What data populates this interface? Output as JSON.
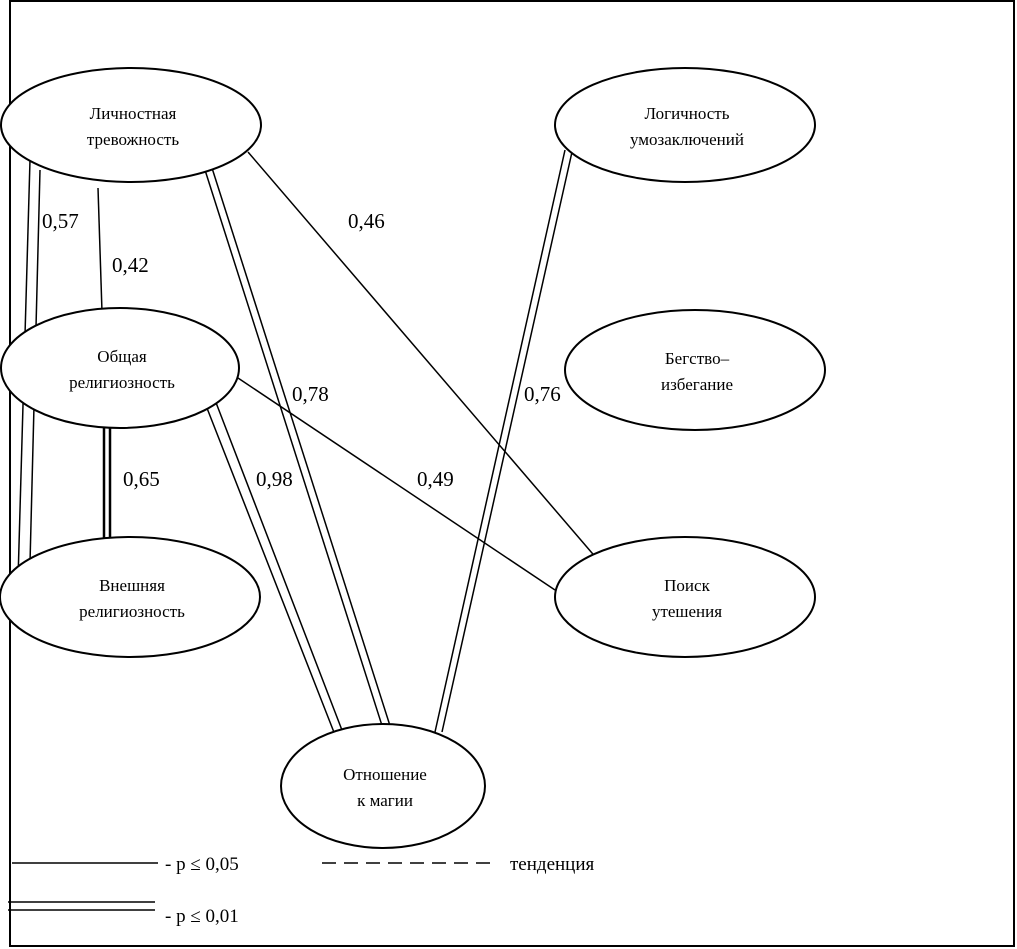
{
  "nodes": {
    "anxiety": {
      "lines": [
        "Личностная",
        "тревожность"
      ]
    },
    "logic": {
      "lines": [
        "Логичность",
        "умозаключений"
      ]
    },
    "religiosity": {
      "lines": [
        "Общая",
        "религиозность"
      ]
    },
    "escape": {
      "lines": [
        "Бегство–",
        "избегание"
      ]
    },
    "external": {
      "lines": [
        "Внешняя",
        "религиозность"
      ]
    },
    "comfort": {
      "lines": [
        "Поиск",
        "утешения"
      ]
    },
    "magic": {
      "lines": [
        "Отношение",
        "к магии"
      ]
    }
  },
  "edges": [
    {
      "from": "anxiety",
      "to": "external",
      "label": "0,57",
      "significance": "p ≤ 0,01"
    },
    {
      "from": "anxiety",
      "to": "religiosity",
      "label": "0,42",
      "significance": "p ≤ 0,05"
    },
    {
      "from": "religiosity",
      "to": "external",
      "label": "0,65",
      "significance": "p ≤ 0,01"
    },
    {
      "from": "anxiety",
      "to": "magic",
      "label": "0,78",
      "significance": "p ≤ 0,01"
    },
    {
      "from": "religiosity",
      "to": "magic",
      "label": "0,98",
      "significance": "p ≤ 0,01"
    },
    {
      "from": "anxiety",
      "to": "comfort",
      "label": "0,46",
      "significance": "p ≤ 0,05"
    },
    {
      "from": "religiosity",
      "to": "comfort",
      "label": "0,49",
      "significance": "p ≤ 0,05"
    },
    {
      "from": "logic",
      "to": "magic",
      "label": "0,76",
      "significance": "p ≤ 0,01"
    }
  ],
  "legend": {
    "single": "- p ≤ 0,05",
    "double": "- p ≤ 0,01",
    "dashed": "тенденция"
  }
}
